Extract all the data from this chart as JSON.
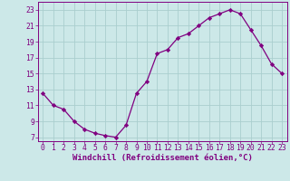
{
  "x": [
    0,
    1,
    2,
    3,
    4,
    5,
    6,
    7,
    8,
    9,
    10,
    11,
    12,
    13,
    14,
    15,
    16,
    17,
    18,
    19,
    20,
    21,
    22,
    23
  ],
  "y": [
    12.5,
    11.0,
    10.5,
    9.0,
    8.0,
    7.5,
    7.2,
    7.0,
    8.5,
    12.5,
    14.0,
    17.5,
    18.0,
    19.5,
    20.0,
    21.0,
    22.0,
    22.5,
    23.0,
    22.5,
    20.5,
    18.5,
    16.2,
    15.0
  ],
  "line_color": "#800080",
  "marker": "D",
  "marker_size": 2.2,
  "bg_color": "#cce8e8",
  "grid_color": "#aacece",
  "xlabel": "Windchill (Refroidissement éolien,°C)",
  "ylim": [
    6.5,
    24
  ],
  "xlim": [
    -0.5,
    23.5
  ],
  "yticks": [
    7,
    9,
    11,
    13,
    15,
    17,
    19,
    21,
    23
  ],
  "xticks": [
    0,
    1,
    2,
    3,
    4,
    5,
    6,
    7,
    8,
    9,
    10,
    11,
    12,
    13,
    14,
    15,
    16,
    17,
    18,
    19,
    20,
    21,
    22,
    23
  ],
  "axis_color": "#800080",
  "tick_color": "#800080",
  "label_fontsize": 6.5,
  "tick_fontsize": 5.8
}
